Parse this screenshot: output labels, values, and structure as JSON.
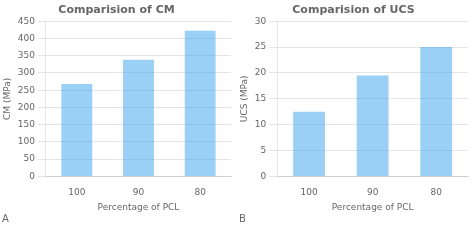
{
  "chart_data": [
    {
      "type": "bar",
      "title": "Comparision of CM",
      "categories": [
        "100",
        "90",
        "80"
      ],
      "values": [
        268,
        338,
        422
      ],
      "xlabel": "Percentage of PCL",
      "ylabel": "CM (MPa)",
      "ylim": [
        0,
        450
      ],
      "yticks": [
        0,
        50,
        100,
        150,
        200,
        250,
        300,
        350,
        400,
        450
      ],
      "grid": true,
      "annotation": "A"
    },
    {
      "type": "bar",
      "title": "Comparision of UCS",
      "categories": [
        "100",
        "90",
        "80"
      ],
      "values": [
        12.5,
        19.5,
        25.0
      ],
      "xlabel": "Percentage of PCL",
      "ylabel": "UCS (MPa)",
      "ylim": [
        0,
        30
      ],
      "yticks": [
        0,
        5,
        10,
        15,
        20,
        25,
        30
      ],
      "grid": true,
      "annotation": "B"
    }
  ]
}
